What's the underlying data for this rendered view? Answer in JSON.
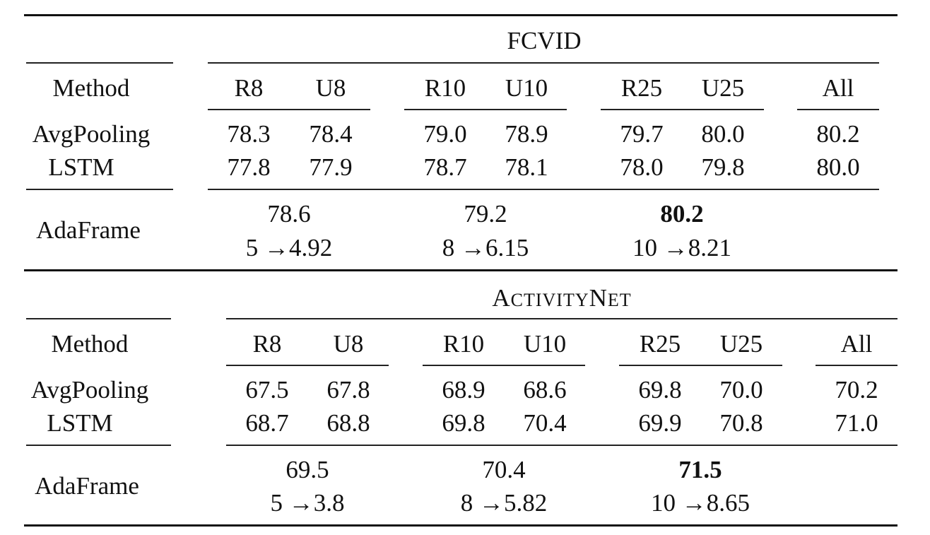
{
  "sections": [
    {
      "dataset": "FCVID",
      "method_header": "Method",
      "columns": [
        "R8",
        "U8",
        "R10",
        "U10",
        "R25",
        "U25",
        "All"
      ],
      "rows": [
        {
          "method": "AvgPooling",
          "values": [
            "78.3",
            "78.4",
            "79.0",
            "78.9",
            "79.7",
            "80.0",
            "80.2"
          ]
        },
        {
          "method": "LSTM",
          "values": [
            "77.8",
            "77.9",
            "78.7",
            "78.1",
            "78.0",
            "79.8",
            "80.0"
          ]
        }
      ],
      "adaframe": {
        "method": "AdaFrame",
        "groups": [
          {
            "score": "78.6",
            "frames": "5 →4.92",
            "bold": false
          },
          {
            "score": "79.2",
            "frames": "8 →6.15",
            "bold": false
          },
          {
            "score": "80.2",
            "frames": "10 →8.21",
            "bold": true
          }
        ]
      }
    },
    {
      "dataset": "ActivityNet",
      "method_header": "Method",
      "columns": [
        "R8",
        "U8",
        "R10",
        "U10",
        "R25",
        "U25",
        "All"
      ],
      "rows": [
        {
          "method": "AvgPooling",
          "values": [
            "67.5",
            "67.8",
            "68.9",
            "68.6",
            "69.8",
            "70.0",
            "70.2"
          ]
        },
        {
          "method": "LSTM",
          "values": [
            "68.7",
            "68.8",
            "69.8",
            "70.4",
            "69.9",
            "70.8",
            "71.0"
          ]
        }
      ],
      "adaframe": {
        "method": "AdaFrame",
        "groups": [
          {
            "score": "69.5",
            "frames": "5 →3.8",
            "bold": false
          },
          {
            "score": "70.4",
            "frames": "8 →5.82",
            "bold": false
          },
          {
            "score": "71.5",
            "frames": "10 →8.65",
            "bold": true
          }
        ]
      }
    }
  ]
}
